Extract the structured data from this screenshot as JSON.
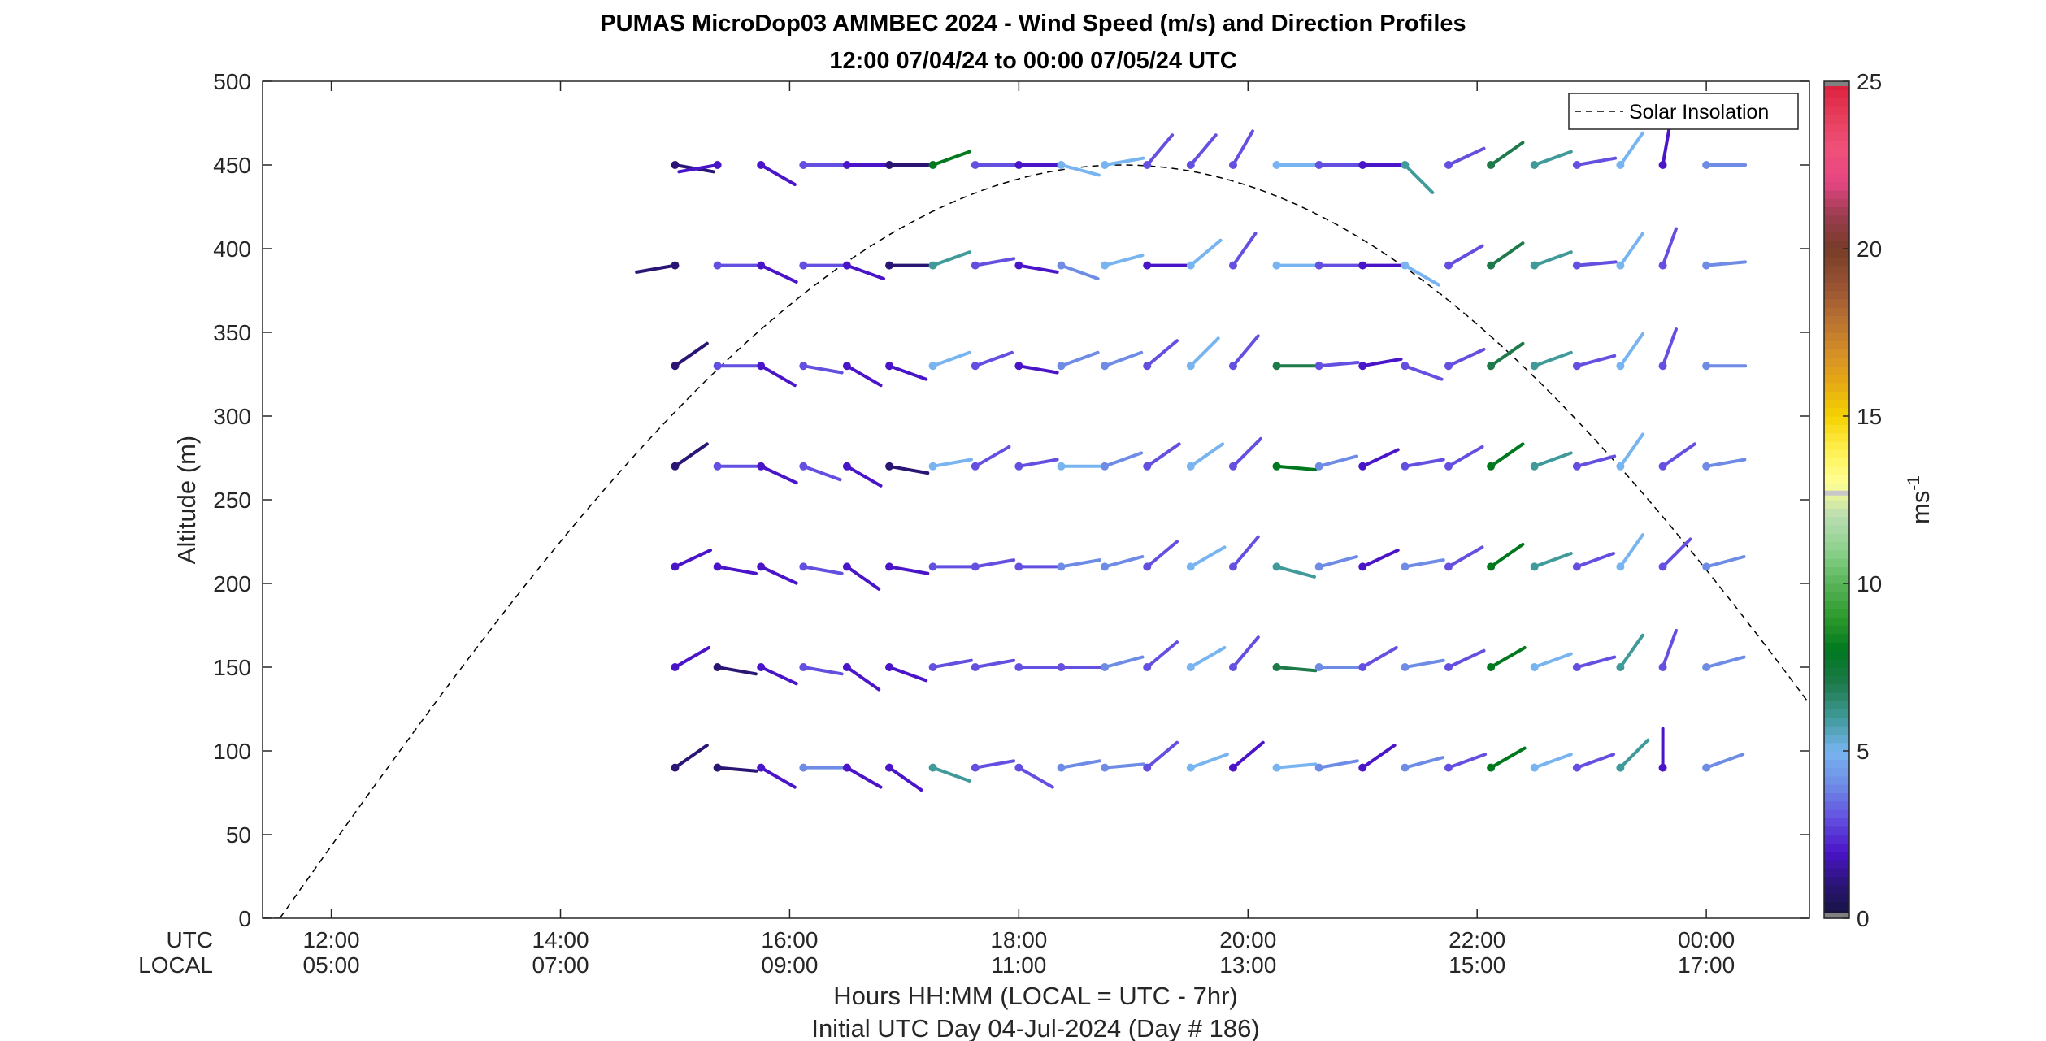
{
  "chart_data": {
    "type": "wind_barb_profile",
    "title_line1": "PUMAS MicroDop03 AMMBEC 2024 - Wind Speed (m/s) and Direction Profiles",
    "title_line2": "12:00 07/04/24 to 00:00 07/05/24  UTC",
    "ylabel": "Altitude (m)",
    "ylim": [
      0,
      500
    ],
    "yticks": [
      0,
      50,
      100,
      150,
      200,
      250,
      300,
      350,
      400,
      450,
      500
    ],
    "xlim_hours": [
      11.4,
      24.9
    ],
    "xtick_hours": [
      12,
      14,
      16,
      18,
      20,
      22,
      24
    ],
    "xticks_utc": [
      "12:00",
      "14:00",
      "16:00",
      "18:00",
      "20:00",
      "22:00",
      "00:00"
    ],
    "xticks_local": [
      "05:00",
      "07:00",
      "09:00",
      "11:00",
      "13:00",
      "15:00",
      "17:00"
    ],
    "row_label_utc": "UTC",
    "row_label_local": "LOCAL",
    "xlabel_line1": "Hours HH:MM  (LOCAL = UTC - 7hr)",
    "xlabel_line2": "Initial UTC Day 04-Jul-2024 (Day # 186)",
    "legend": {
      "location": "top-right",
      "entries": [
        "Solar Insolation"
      ]
    },
    "colorbar": {
      "label": "ms",
      "label_superscript": "-1",
      "lim": [
        0,
        25
      ],
      "ticks": [
        0,
        5,
        10,
        15,
        20,
        25
      ],
      "colors": {
        "c0": "#14143a",
        "c1": "#2a1474",
        "c2": "#4a14c8",
        "c3": "#6450e0",
        "c4": "#6e8ce6",
        "c5": "#78b4f0",
        "c6": "#409a9a",
        "c7": "#1e7a4a",
        "c8": "#00781e",
        "c9": "#2c9a2c",
        "c10": "#58b458",
        "c11": "#8cd28c",
        "c12": "#b8dcb0",
        "c13": "#ffff96",
        "c14": "#fff050",
        "c15": "#f5d200",
        "c16": "#e6aa14",
        "c17": "#d28c28",
        "c18": "#b46e32",
        "c19": "#965032",
        "c20": "#783c28",
        "c21": "#9a3c50",
        "c22": "#e64682",
        "c23": "#f0507a",
        "c24": "#e63c5a",
        "c25": "#dc1e3c"
      }
    },
    "solar_insolation": {
      "style": "dashed",
      "color": "#000000",
      "start_hour": 11.55,
      "peak_hour": 18.9,
      "end_hour": 26.25,
      "peak_altitude_m": 450
    },
    "altitudes_m": [
      90,
      150,
      210,
      270,
      330,
      390,
      450
    ],
    "times_hours": [
      15.0,
      15.37,
      15.75,
      16.12,
      16.5,
      16.87,
      17.25,
      17.62,
      18.0,
      18.37,
      18.75,
      19.12,
      19.5,
      19.87,
      20.25,
      20.62,
      21.0,
      21.37,
      21.75,
      22.12,
      22.5,
      22.87,
      23.25,
      23.62,
      24.0
    ],
    "wind_profiles": [
      {
        "time": 15.0,
        "speed": [
          1.2,
          1.5,
          1.5,
          1.2,
          1.2,
          0.8,
          0.8
        ],
        "dir_deg": [
          235,
          240,
          245,
          235,
          235,
          80,
          280
        ]
      },
      {
        "time": 15.37,
        "speed": [
          1.2,
          1.2,
          1.5,
          3.0,
          3.0,
          3.0,
          1.5
        ],
        "dir_deg": [
          275,
          280,
          280,
          270,
          270,
          270,
          80
        ]
      },
      {
        "time": 15.75,
        "speed": [
          1.5,
          1.5,
          1.5,
          1.5,
          1.5,
          1.5,
          1.5
        ],
        "dir_deg": [
          300,
          295,
          295,
          295,
          300,
          295,
          300
        ]
      },
      {
        "time": 16.12,
        "speed": [
          3.5,
          3.0,
          3.0,
          3.2,
          3.0,
          3.0,
          3.0
        ],
        "dir_deg": [
          270,
          280,
          280,
          290,
          280,
          270,
          270
        ]
      },
      {
        "time": 16.5,
        "speed": [
          1.8,
          2.2,
          2.2,
          2.2,
          2.0,
          1.5,
          1.8
        ],
        "dir_deg": [
          300,
          305,
          305,
          300,
          300,
          290,
          270
        ]
      },
      {
        "time": 16.87,
        "speed": [
          1.8,
          1.5,
          1.5,
          1.2,
          1.5,
          1.2,
          1.2
        ],
        "dir_deg": [
          305,
          290,
          280,
          280,
          290,
          270,
          270
        ]
      },
      {
        "time": 17.25,
        "speed": [
          5.5,
          2.5,
          2.5,
          4.5,
          4.5,
          5.5,
          8.0
        ],
        "dir_deg": [
          290,
          260,
          270,
          260,
          250,
          250,
          250
        ]
      },
      {
        "time": 17.62,
        "speed": [
          3.0,
          2.8,
          2.5,
          3.0,
          3.0,
          2.5,
          2.5
        ],
        "dir_deg": [
          260,
          260,
          260,
          240,
          250,
          260,
          270
        ]
      },
      {
        "time": 18.0,
        "speed": [
          2.5,
          2.5,
          2.5,
          2.5,
          2.0,
          2.0,
          2.0
        ],
        "dir_deg": [
          300,
          270,
          270,
          260,
          280,
          280,
          270
        ]
      },
      {
        "time": 18.37,
        "speed": [
          3.5,
          3.0,
          4.0,
          4.5,
          4.0,
          4.0,
          5.0
        ],
        "dir_deg": [
          260,
          270,
          260,
          270,
          250,
          290,
          285
        ]
      },
      {
        "time": 18.75,
        "speed": [
          4.0,
          3.5,
          4.0,
          4.0,
          3.5,
          5.0,
          5.0
        ],
        "dir_deg": [
          265,
          255,
          255,
          250,
          250,
          255,
          260
        ]
      },
      {
        "time": 19.12,
        "speed": [
          2.5,
          2.5,
          2.5,
          2.5,
          2.5,
          2.0,
          2.5
        ],
        "dir_deg": [
          230,
          230,
          230,
          235,
          230,
          270,
          220
        ]
      },
      {
        "time": 19.5,
        "speed": [
          5.0,
          4.5,
          4.5,
          4.5,
          4.5,
          4.5,
          3.0
        ],
        "dir_deg": [
          250,
          240,
          240,
          235,
          225,
          230,
          220
        ]
      },
      {
        "time": 19.87,
        "speed": [
          2.0,
          2.5,
          3.0,
          2.5,
          2.5,
          2.5,
          3.0
        ],
        "dir_deg": [
          230,
          220,
          220,
          225,
          220,
          215,
          210
        ]
      },
      {
        "time": 20.25,
        "speed": [
          4.8,
          6.5,
          6.0,
          7.5,
          6.5,
          5.0,
          4.5
        ],
        "dir_deg": [
          265,
          275,
          285,
          275,
          270,
          270,
          270
        ]
      },
      {
        "time": 20.62,
        "speed": [
          4.0,
          3.5,
          3.5,
          3.5,
          3.0,
          2.5,
          2.5
        ],
        "dir_deg": [
          260,
          270,
          255,
          255,
          265,
          270,
          270
        ]
      },
      {
        "time": 21.0,
        "speed": [
          2.0,
          2.5,
          2.0,
          2.0,
          1.5,
          1.5,
          1.5
        ],
        "dir_deg": [
          235,
          240,
          245,
          245,
          260,
          270,
          270
        ]
      },
      {
        "time": 21.37,
        "speed": [
          3.5,
          3.5,
          3.5,
          3.0,
          3.0,
          4.5,
          6.0
        ],
        "dir_deg": [
          255,
          260,
          260,
          260,
          290,
          300,
          315
        ]
      },
      {
        "time": 21.75,
        "speed": [
          2.5,
          2.5,
          2.5,
          2.5,
          2.5,
          2.5,
          2.5
        ],
        "dir_deg": [
          250,
          245,
          240,
          240,
          245,
          240,
          245
        ]
      },
      {
        "time": 22.12,
        "speed": [
          8.0,
          7.5,
          8.0,
          7.5,
          6.5,
          7.0,
          7.0
        ],
        "dir_deg": [
          240,
          240,
          235,
          235,
          235,
          235,
          235
        ]
      },
      {
        "time": 22.5,
        "speed": [
          5.0,
          5.0,
          6.0,
          6.0,
          6.0,
          6.0,
          5.5
        ],
        "dir_deg": [
          250,
          250,
          250,
          250,
          250,
          250,
          250
        ]
      },
      {
        "time": 22.87,
        "speed": [
          3.0,
          3.0,
          3.0,
          3.0,
          3.0,
          3.0,
          3.0
        ],
        "dir_deg": [
          250,
          255,
          250,
          255,
          255,
          265,
          260
        ]
      },
      {
        "time": 23.25,
        "speed": [
          5.5,
          5.5,
          5.0,
          5.0,
          5.0,
          5.0,
          5.0
        ],
        "dir_deg": [
          225,
          215,
          215,
          215,
          215,
          215,
          215
        ]
      },
      {
        "time": 23.62,
        "speed": [
          2.0,
          3.0,
          3.0,
          3.0,
          2.5,
          2.5,
          2.0
        ],
        "dir_deg": [
          180,
          200,
          225,
          235,
          200,
          200,
          190
        ]
      },
      {
        "time": 24.0,
        "speed": [
          3.5,
          3.5,
          3.5,
          3.5,
          3.5,
          3.5,
          4.0
        ],
        "dir_deg": [
          250,
          255,
          255,
          260,
          270,
          265,
          270
        ]
      }
    ]
  }
}
